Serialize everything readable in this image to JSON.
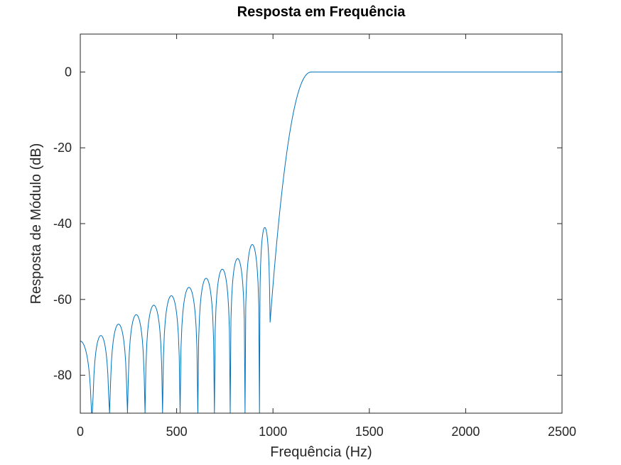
{
  "chart_data": {
    "type": "line",
    "title": "Resposta em Frequência",
    "xlabel": "Frequência (Hz)",
    "ylabel": "Resposta de Módulo (dB)",
    "xlim": [
      0,
      2500
    ],
    "ylim": [
      -90,
      10
    ],
    "xticks": [
      0,
      500,
      1000,
      1500,
      2000,
      2500
    ],
    "yticks": [
      0,
      -20,
      -40,
      -60,
      -80
    ],
    "line_color": "#0072bd",
    "grid": false,
    "series": [
      {
        "name": "Resposta de Módulo",
        "stopband_nulls_hz": [
          0,
          62,
          152,
          245,
          336,
          427,
          518,
          610,
          696,
          778,
          855,
          930
        ],
        "stopband_lobe_peaks_hz": [
          0,
          108,
          200,
          290,
          382,
          472,
          565,
          652,
          736,
          817,
          893,
          967
        ],
        "stopband_lobe_peaks_db": [
          -71,
          -69.5,
          -66.5,
          -64,
          -61.5,
          -59,
          -56.8,
          -54.4,
          -52,
          -49.2,
          -45.5,
          -41
        ],
        "transition_start_hz": 985,
        "transition_start_db": -66,
        "passband_start_hz": 1200,
        "passband_level_db": 0,
        "x_end_hz": 2500
      }
    ]
  }
}
